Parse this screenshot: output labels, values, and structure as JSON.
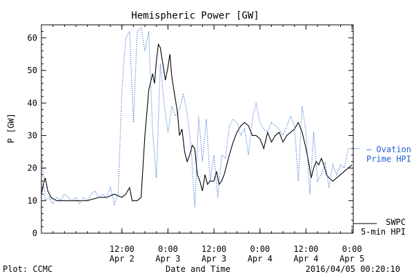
{
  "chart_data": {
    "type": "line",
    "title": "Hemispheric Power [GW]",
    "xlabel": "Date and Time",
    "ylabel": "P [GW]",
    "ylim": [
      0,
      64
    ],
    "xlim": [
      "2016-04-01T15:00",
      "2016-04-05T00:20"
    ],
    "yticks": [
      0,
      10,
      20,
      30,
      40,
      50,
      60
    ],
    "xticks": [
      {
        "t": "2016-04-02T12:00",
        "line1": "12:00",
        "line2": "Apr 2"
      },
      {
        "t": "2016-04-03T00:00",
        "line1": "0:00",
        "line2": "Apr 3"
      },
      {
        "t": "2016-04-03T12:00",
        "line1": "12:00",
        "line2": "Apr 3"
      },
      {
        "t": "2016-04-04T00:00",
        "line1": "0:00",
        "line2": "Apr 4"
      },
      {
        "t": "2016-04-04T12:00",
        "line1": "12:00",
        "line2": "Apr 4"
      },
      {
        "t": "2016-04-05T00:00",
        "line1": "0:00",
        "line2": "Apr 5"
      }
    ],
    "grid": false,
    "legend_position": "right",
    "series": [
      {
        "name": "SWPC 5-min HPI",
        "legend_lines": [
          "SWPC",
          "5-min HPI"
        ],
        "color": "#000000",
        "style": "solid",
        "points": [
          [
            "2016-04-01T15:00",
            12
          ],
          [
            "2016-04-01T15:30",
            15
          ],
          [
            "2016-04-01T16:00",
            17
          ],
          [
            "2016-04-01T16:40",
            13
          ],
          [
            "2016-04-01T17:30",
            11
          ],
          [
            "2016-04-01T19:00",
            10
          ],
          [
            "2016-04-01T21:00",
            10
          ],
          [
            "2016-04-02T00:00",
            10
          ],
          [
            "2016-04-02T03:00",
            10
          ],
          [
            "2016-04-02T06:00",
            11
          ],
          [
            "2016-04-02T08:00",
            11
          ],
          [
            "2016-04-02T10:00",
            12
          ],
          [
            "2016-04-02T12:00",
            11
          ],
          [
            "2016-04-02T13:00",
            12
          ],
          [
            "2016-04-02T14:00",
            14
          ],
          [
            "2016-04-02T14:40",
            10
          ],
          [
            "2016-04-02T16:00",
            10
          ],
          [
            "2016-04-02T17:00",
            11
          ],
          [
            "2016-04-02T18:00",
            30
          ],
          [
            "2016-04-02T19:00",
            44
          ],
          [
            "2016-04-02T20:00",
            49
          ],
          [
            "2016-04-02T20:30",
            46
          ],
          [
            "2016-04-02T21:00",
            53
          ],
          [
            "2016-04-02T21:30",
            58
          ],
          [
            "2016-04-02T22:00",
            57
          ],
          [
            "2016-04-02T22:40",
            52
          ],
          [
            "2016-04-02T23:20",
            47
          ],
          [
            "2016-04-03T00:00",
            51
          ],
          [
            "2016-04-03T00:30",
            55
          ],
          [
            "2016-04-03T01:00",
            48
          ],
          [
            "2016-04-03T01:40",
            43
          ],
          [
            "2016-04-03T02:30",
            37
          ],
          [
            "2016-04-03T03:00",
            30
          ],
          [
            "2016-04-03T03:40",
            32
          ],
          [
            "2016-04-03T04:20",
            25
          ],
          [
            "2016-04-03T05:00",
            22
          ],
          [
            "2016-04-03T05:40",
            24
          ],
          [
            "2016-04-03T06:20",
            27
          ],
          [
            "2016-04-03T07:00",
            26
          ],
          [
            "2016-04-03T07:40",
            18
          ],
          [
            "2016-04-03T08:20",
            16
          ],
          [
            "2016-04-03T09:00",
            13
          ],
          [
            "2016-04-03T09:40",
            18
          ],
          [
            "2016-04-03T10:20",
            15
          ],
          [
            "2016-04-03T11:00",
            16
          ],
          [
            "2016-04-03T12:00",
            16
          ],
          [
            "2016-04-03T12:40",
            19
          ],
          [
            "2016-04-03T13:20",
            15
          ],
          [
            "2016-04-03T14:00",
            16
          ],
          [
            "2016-04-03T14:40",
            18
          ],
          [
            "2016-04-03T15:20",
            21
          ],
          [
            "2016-04-03T16:00",
            24
          ],
          [
            "2016-04-03T17:00",
            28
          ],
          [
            "2016-04-03T18:00",
            31
          ],
          [
            "2016-04-03T19:00",
            33
          ],
          [
            "2016-04-03T20:00",
            34
          ],
          [
            "2016-04-03T21:00",
            33
          ],
          [
            "2016-04-03T22:00",
            30
          ],
          [
            "2016-04-03T23:00",
            30
          ],
          [
            "2016-04-04T00:00",
            29
          ],
          [
            "2016-04-04T01:00",
            26
          ],
          [
            "2016-04-04T02:00",
            31
          ],
          [
            "2016-04-04T03:00",
            28
          ],
          [
            "2016-04-04T04:00",
            30
          ],
          [
            "2016-04-04T05:00",
            31
          ],
          [
            "2016-04-04T06:00",
            28
          ],
          [
            "2016-04-04T07:00",
            30
          ],
          [
            "2016-04-04T08:00",
            31
          ],
          [
            "2016-04-04T09:00",
            32
          ],
          [
            "2016-04-04T10:00",
            34
          ],
          [
            "2016-04-04T11:00",
            31
          ],
          [
            "2016-04-04T12:00",
            26
          ],
          [
            "2016-04-04T12:40",
            22
          ],
          [
            "2016-04-04T13:20",
            17
          ],
          [
            "2016-04-04T14:00",
            20
          ],
          [
            "2016-04-04T14:40",
            22
          ],
          [
            "2016-04-04T15:20",
            21
          ],
          [
            "2016-04-04T16:00",
            23
          ],
          [
            "2016-04-04T16:40",
            21
          ],
          [
            "2016-04-04T17:20",
            18
          ],
          [
            "2016-04-04T18:00",
            17
          ],
          [
            "2016-04-04T19:00",
            16
          ],
          [
            "2016-04-04T20:00",
            17
          ],
          [
            "2016-04-04T21:00",
            18
          ],
          [
            "2016-04-04T22:00",
            19
          ],
          [
            "2016-04-04T23:00",
            20
          ],
          [
            "2016-04-05T00:00",
            21
          ]
        ]
      },
      {
        "name": "Ovation Prime HPI",
        "legend_lines": [
          "— Ovation",
          "Prime HPI"
        ],
        "color": "#1f5fd0",
        "style": "dotted",
        "points": [
          [
            "2016-04-01T15:00",
            25
          ],
          [
            "2016-04-01T16:00",
            10
          ],
          [
            "2016-04-01T17:00",
            11
          ],
          [
            "2016-04-01T18:00",
            9
          ],
          [
            "2016-04-01T19:00",
            11
          ],
          [
            "2016-04-01T20:00",
            10
          ],
          [
            "2016-04-01T21:00",
            12
          ],
          [
            "2016-04-01T22:00",
            11
          ],
          [
            "2016-04-01T23:00",
            10
          ],
          [
            "2016-04-02T00:00",
            11
          ],
          [
            "2016-04-02T01:00",
            9
          ],
          [
            "2016-04-02T02:00",
            11
          ],
          [
            "2016-04-02T03:00",
            10
          ],
          [
            "2016-04-02T04:00",
            12
          ],
          [
            "2016-04-02T05:00",
            13
          ],
          [
            "2016-04-02T06:00",
            11
          ],
          [
            "2016-04-02T07:00",
            12
          ],
          [
            "2016-04-02T08:00",
            11
          ],
          [
            "2016-04-02T09:00",
            14
          ],
          [
            "2016-04-02T10:00",
            9
          ],
          [
            "2016-04-02T11:00",
            12
          ],
          [
            "2016-04-02T12:00",
            44
          ],
          [
            "2016-04-02T13:00",
            60
          ],
          [
            "2016-04-02T14:00",
            62
          ],
          [
            "2016-04-02T15:00",
            34
          ],
          [
            "2016-04-02T16:00",
            62
          ],
          [
            "2016-04-02T17:00",
            63
          ],
          [
            "2016-04-02T18:00",
            56
          ],
          [
            "2016-04-02T19:00",
            62
          ],
          [
            "2016-04-02T20:00",
            31
          ],
          [
            "2016-04-02T21:00",
            17
          ],
          [
            "2016-04-02T22:00",
            52
          ],
          [
            "2016-04-02T23:00",
            40
          ],
          [
            "2016-04-03T00:00",
            31
          ],
          [
            "2016-04-03T01:00",
            39
          ],
          [
            "2016-04-03T02:00",
            36
          ],
          [
            "2016-04-03T03:00",
            38
          ],
          [
            "2016-04-03T04:00",
            43
          ],
          [
            "2016-04-03T05:00",
            37
          ],
          [
            "2016-04-03T06:00",
            27
          ],
          [
            "2016-04-03T07:00",
            8
          ],
          [
            "2016-04-03T08:00",
            36
          ],
          [
            "2016-04-03T09:00",
            22
          ],
          [
            "2016-04-03T10:00",
            35
          ],
          [
            "2016-04-03T11:00",
            16
          ],
          [
            "2016-04-03T12:00",
            24
          ],
          [
            "2016-04-03T13:00",
            11
          ],
          [
            "2016-04-03T14:00",
            24
          ],
          [
            "2016-04-03T15:00",
            23
          ],
          [
            "2016-04-03T16:00",
            33
          ],
          [
            "2016-04-03T17:00",
            35
          ],
          [
            "2016-04-03T18:00",
            34
          ],
          [
            "2016-04-03T19:00",
            30
          ],
          [
            "2016-04-03T20:00",
            32
          ],
          [
            "2016-04-03T21:00",
            24
          ],
          [
            "2016-04-03T22:00",
            35
          ],
          [
            "2016-04-03T23:00",
            40
          ],
          [
            "2016-04-04T00:00",
            34
          ],
          [
            "2016-04-04T01:00",
            32
          ],
          [
            "2016-04-04T02:00",
            31
          ],
          [
            "2016-04-04T03:00",
            34
          ],
          [
            "2016-04-04T04:00",
            33
          ],
          [
            "2016-04-04T05:00",
            32
          ],
          [
            "2016-04-04T06:00",
            30
          ],
          [
            "2016-04-04T07:00",
            33
          ],
          [
            "2016-04-04T08:00",
            36
          ],
          [
            "2016-04-04T09:00",
            33
          ],
          [
            "2016-04-04T10:00",
            16
          ],
          [
            "2016-04-04T11:00",
            39
          ],
          [
            "2016-04-04T12:00",
            31
          ],
          [
            "2016-04-04T13:00",
            12
          ],
          [
            "2016-04-04T14:00",
            31
          ],
          [
            "2016-04-04T15:00",
            16
          ],
          [
            "2016-04-04T16:00",
            18
          ],
          [
            "2016-04-04T17:00",
            22
          ],
          [
            "2016-04-04T18:00",
            14
          ],
          [
            "2016-04-04T19:00",
            21
          ],
          [
            "2016-04-04T20:00",
            18
          ],
          [
            "2016-04-04T21:00",
            21
          ],
          [
            "2016-04-04T22:00",
            20
          ],
          [
            "2016-04-04T23:00",
            26
          ],
          [
            "2016-04-05T00:00",
            26
          ]
        ]
      }
    ]
  },
  "footer": {
    "left": "Plot: CCMC",
    "right": "2016/04/05 00:20:10"
  }
}
